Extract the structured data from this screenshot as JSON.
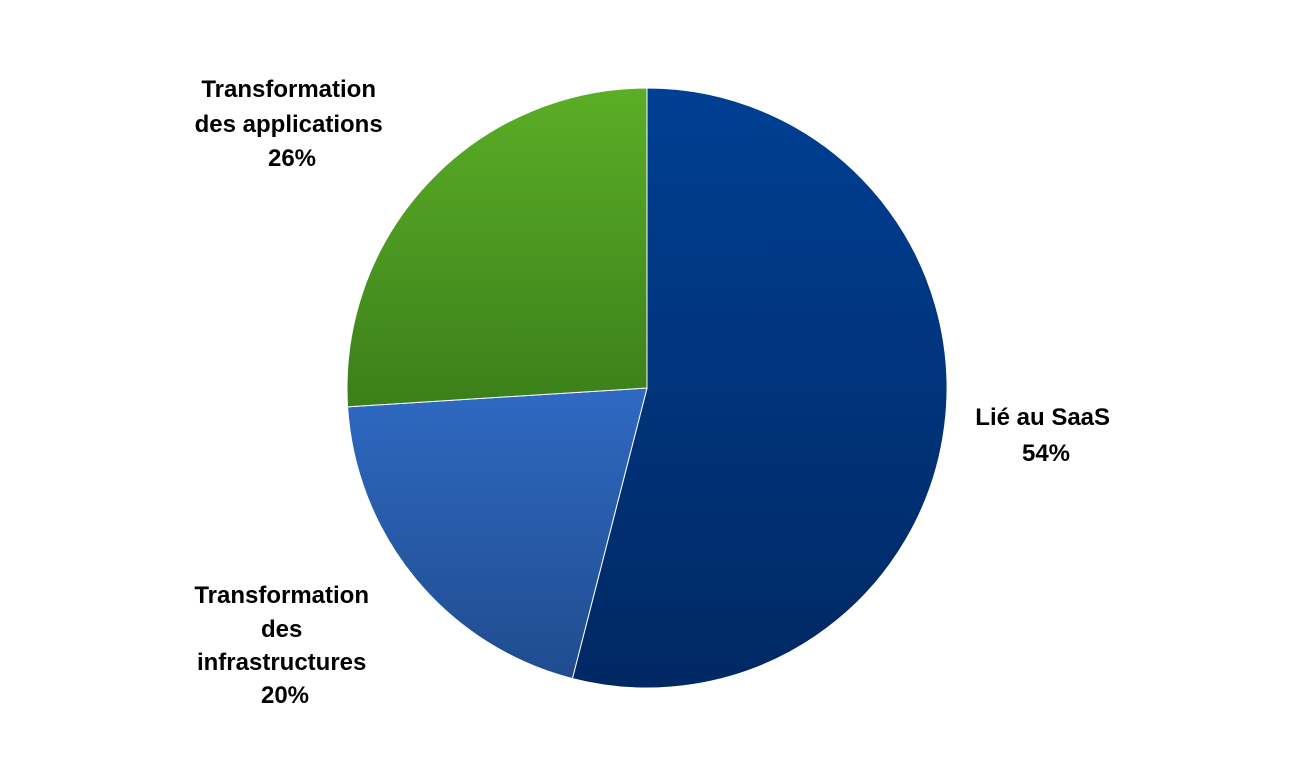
{
  "chart_data": {
    "type": "pie",
    "slices": [
      {
        "label_lines": [
          "Lié au SaaS"
        ],
        "percent_label": "54%",
        "value": 54,
        "colors": {
          "light": "#003F93",
          "dark": "#002863"
        }
      },
      {
        "label_lines": [
          "Transformation",
          "des",
          "infrastructures"
        ],
        "percent_label": "20%",
        "value": 20,
        "colors": {
          "light": "#2F69C2",
          "dark": "#1F4C8E"
        }
      },
      {
        "label_lines": [
          "Transformation",
          "des applications"
        ],
        "percent_label": "26%",
        "value": 26,
        "colors": {
          "light": "#5BAE27",
          "dark": "#3C7F1A"
        }
      }
    ],
    "start_angle_deg": 0,
    "direction": "clockwise",
    "legend": "none",
    "data_labels": "outside"
  }
}
